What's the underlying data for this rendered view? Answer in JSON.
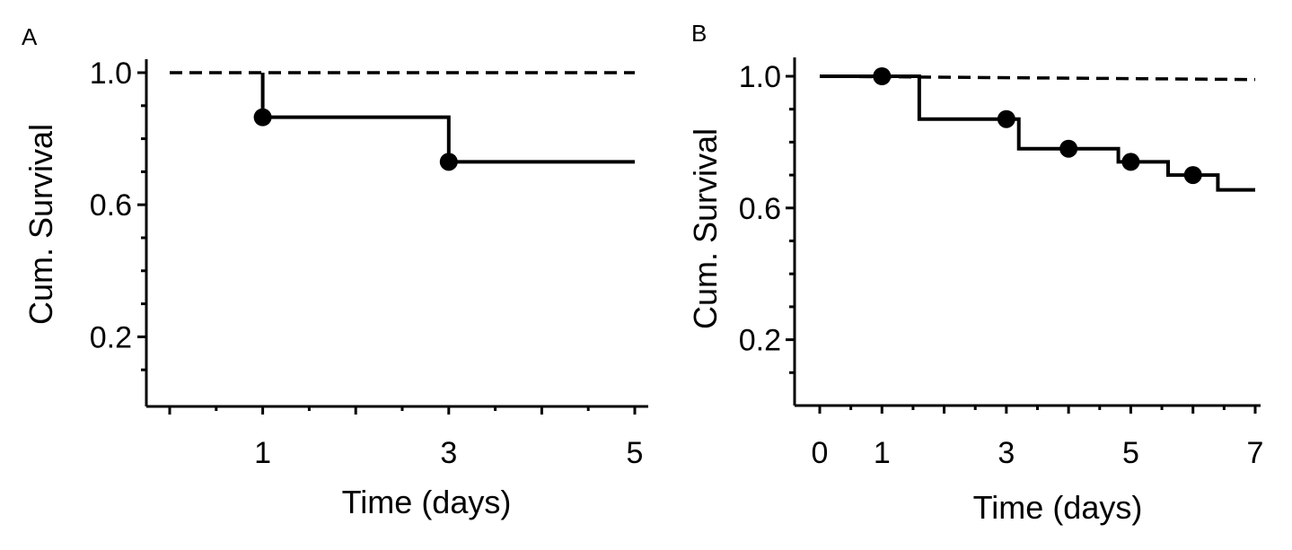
{
  "chart_data": [
    {
      "panel": "A",
      "type": "line",
      "xlabel": "Time (days)",
      "ylabel": "Cum. Survival",
      "xlim": [
        0,
        5
      ],
      "ylim": [
        0,
        1.0
      ],
      "xticks": [
        1,
        3,
        5
      ],
      "yticks": [
        0.2,
        0.6,
        1.0
      ],
      "grid": false,
      "series": [
        {
          "style": "dashed",
          "x": [
            0,
            5
          ],
          "y": [
            1.0,
            1.0
          ],
          "censored": []
        },
        {
          "style": "solid",
          "x": [
            1,
            3,
            5
          ],
          "y": [
            0.865,
            0.73,
            0.73
          ],
          "start": [
            1,
            1.0
          ],
          "censored": [
            {
              "x": 1,
              "y": 0.865
            },
            {
              "x": 3,
              "y": 0.73
            }
          ]
        }
      ]
    },
    {
      "panel": "B",
      "type": "line",
      "xlabel": "Time (days)",
      "ylabel": "Cum. Survival",
      "xlim": [
        0,
        7
      ],
      "ylim": [
        0,
        1.0
      ],
      "xticks": [
        0,
        1,
        3,
        5,
        7
      ],
      "yticks": [
        0.2,
        0.6,
        1.0
      ],
      "grid": false,
      "series": [
        {
          "style": "dashed",
          "x": [
            0,
            7
          ],
          "y": [
            1.0,
            0.99
          ],
          "censored": []
        },
        {
          "style": "solid",
          "start": [
            0,
            1.0
          ],
          "x": [
            1.6,
            3.2,
            4.8,
            5.6,
            6.4,
            7
          ],
          "y": [
            0.87,
            0.78,
            0.74,
            0.7,
            0.655,
            0.655
          ],
          "censored": [
            {
              "x": 1,
              "y": 1.0
            },
            {
              "x": 3,
              "y": 0.87
            },
            {
              "x": 4,
              "y": 0.78
            },
            {
              "x": 5,
              "y": 0.74
            },
            {
              "x": 6,
              "y": 0.7
            }
          ]
        }
      ]
    }
  ]
}
